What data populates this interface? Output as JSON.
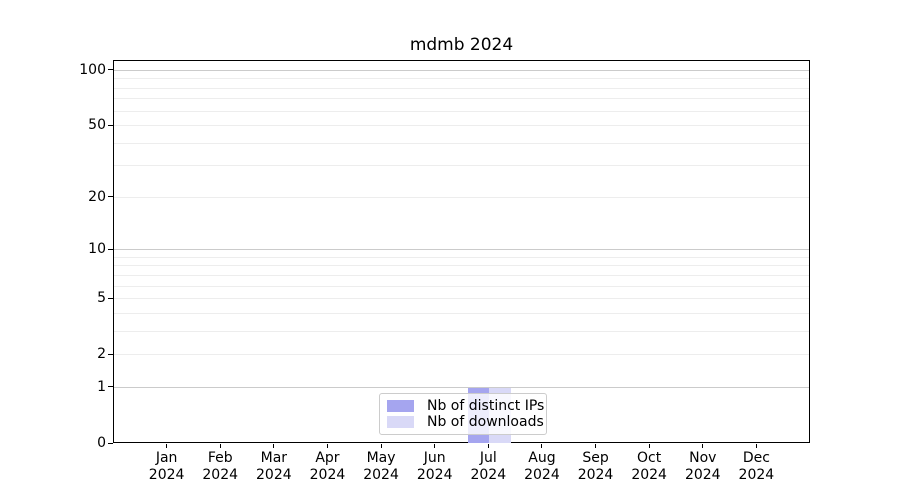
{
  "chart_data": {
    "type": "bar",
    "title": "mdmb 2024",
    "categories": [
      "Jan 2024",
      "Feb 2024",
      "Mar 2024",
      "Apr 2024",
      "May 2024",
      "Jun 2024",
      "Jul 2024",
      "Aug 2024",
      "Sep 2024",
      "Oct 2024",
      "Nov 2024",
      "Dec 2024"
    ],
    "series": [
      {
        "name": "Nb of distinct IPs",
        "color": "#a5a5ef",
        "values": [
          0,
          0,
          0,
          0,
          0,
          0,
          1,
          0,
          0,
          0,
          0,
          0
        ]
      },
      {
        "name": "Nb of downloads",
        "color": "#d9d9f7",
        "values": [
          0,
          0,
          0,
          0,
          0,
          0,
          1,
          0,
          0,
          0,
          0,
          0
        ]
      }
    ],
    "xlabel": "",
    "ylabel": "",
    "y_scale": "log1p",
    "ylim": [
      0,
      113
    ],
    "y_ticks": [
      0,
      1,
      2,
      5,
      10,
      20,
      50,
      100
    ],
    "y_major_grid": [
      1,
      10,
      100
    ],
    "y_minor_grid": [
      2,
      3,
      4,
      5,
      6,
      7,
      8,
      9,
      20,
      30,
      40,
      50,
      60,
      70,
      80,
      90
    ],
    "grid": true,
    "legend_position": "lower center",
    "colors": {
      "axis": "#000000",
      "major_grid": "#cbcbcb",
      "minor_grid": "#ededed",
      "background": "#ffffff"
    }
  }
}
